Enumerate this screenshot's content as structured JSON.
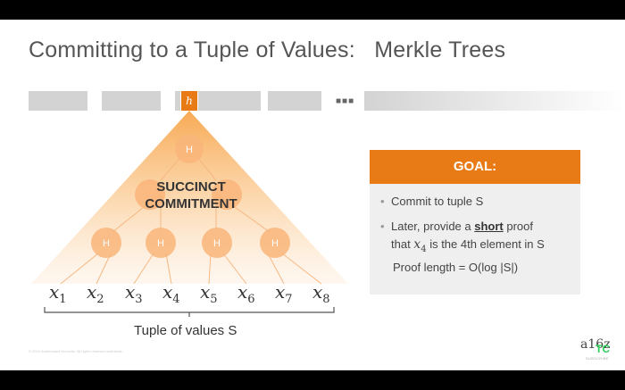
{
  "slide": {
    "title": "Committing to a Tuple of Values:   Merkle Trees",
    "root_symbol": "h",
    "node_label": "H",
    "succinct_line1": "SUCCINCT",
    "succinct_line2": "COMMITMENT",
    "tuple_label": "Tuple of values S",
    "values": [
      {
        "var": "x",
        "sub": "1"
      },
      {
        "var": "x",
        "sub": "2"
      },
      {
        "var": "x",
        "sub": "3"
      },
      {
        "var": "x",
        "sub": "4"
      },
      {
        "var": "x",
        "sub": "5"
      },
      {
        "var": "x",
        "sub": "6"
      },
      {
        "var": "x",
        "sub": "7"
      },
      {
        "var": "x",
        "sub": "8"
      }
    ],
    "goal": {
      "heading": "GOAL:",
      "item1": "Commit to tuple S",
      "item2_pre": "Later, provide a ",
      "item2_bold": "short",
      "item2_post": " proof",
      "item3_pre": "that ",
      "item3_var": "x",
      "item3_sub": "4",
      "item3_post": " is the 4th element in S",
      "item4": "Proof length = O(log |S|)"
    },
    "footer_note": "© 2024 Andreessen Horowitz. All rights reserved worldwide.",
    "brand": "a16z",
    "tc_logo": "TC",
    "subscribe": "SUBSCRIBE"
  },
  "colors": {
    "accent": "#e87b16",
    "title": "#555555",
    "goal_bg": "#efefef"
  }
}
